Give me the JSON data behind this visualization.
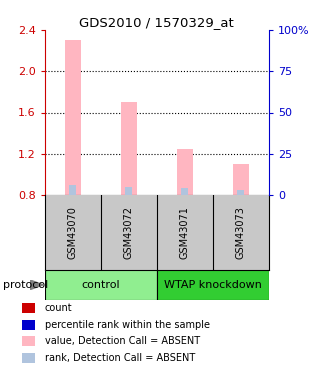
{
  "title": "GDS2010 / 1570329_at",
  "samples": [
    "GSM43070",
    "GSM43072",
    "GSM43071",
    "GSM43073"
  ],
  "group_labels": [
    "control",
    "WTAP knockdown"
  ],
  "ylim_left": [
    0.8,
    2.4
  ],
  "ylim_right": [
    0,
    100
  ],
  "yticks_left": [
    0.8,
    1.2,
    1.6,
    2.0,
    2.4
  ],
  "yticks_right": [
    0,
    25,
    50,
    75,
    100
  ],
  "ytick_labels_right": [
    "0",
    "25",
    "50",
    "75",
    "100%"
  ],
  "bar_values": [
    2.3,
    1.7,
    1.25,
    1.1
  ],
  "bar_color": "#FFB6C1",
  "rank_percent": [
    6,
    5,
    4,
    3
  ],
  "rank_color": "#B0C4DE",
  "rank_bar_width": 0.12,
  "bar_width": 0.28,
  "x_positions": [
    0,
    1,
    2,
    3
  ],
  "legend_items": [
    {
      "label": "count",
      "color": "#CC0000"
    },
    {
      "label": "percentile rank within the sample",
      "color": "#0000CC"
    },
    {
      "label": "value, Detection Call = ABSENT",
      "color": "#FFB6C1"
    },
    {
      "label": "rank, Detection Call = ABSENT",
      "color": "#B0C4DE"
    }
  ],
  "protocol_label": "protocol",
  "left_axis_color": "#CC0000",
  "right_axis_color": "#0000CC",
  "background_color": "#FFFFFF",
  "sample_bg_color": "#C8C8C8",
  "group_bg_color_control": "#90EE90",
  "group_bg_color_wtap": "#32CD32",
  "dotted_lines": [
    2.0,
    1.6,
    1.2
  ]
}
